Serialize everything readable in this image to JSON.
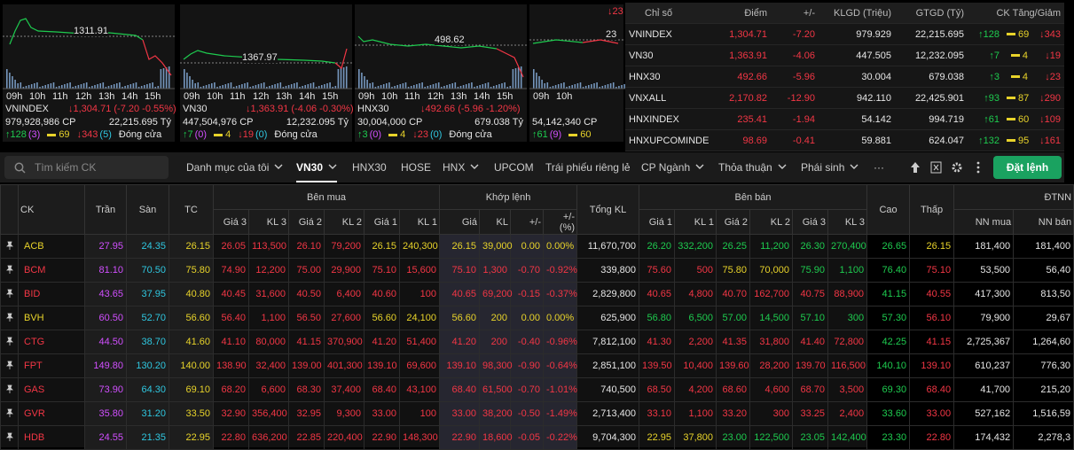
{
  "index_panels": [
    {
      "ref_label": "1311.91",
      "times": [
        "09h",
        "10h",
        "11h",
        "12h",
        "13h",
        "14h",
        "15h"
      ],
      "name": "VNINDEX",
      "change": "↓1,304.71 (-7.20 -0.55%)",
      "volume": "979,928,986 CP",
      "value": "22,215.695 Tỷ",
      "up": "↑128",
      "ceil": "(3)",
      "flat": "69",
      "down": "↓343",
      "floor": "(5)",
      "status": "Đóng cửa"
    },
    {
      "ref_label": "1367.97",
      "times": [
        "09h",
        "10h",
        "11h",
        "12h",
        "13h",
        "14h",
        "15h"
      ],
      "name": "VN30",
      "change": "↓1,363.91 (-4.06 -0.30%)",
      "volume": "447,504,976 CP",
      "value": "12,232.095 Tỷ",
      "up": "↑7",
      "ceil": "(0)",
      "flat": "4",
      "down": "↓19",
      "floor": "(0)",
      "status": "Đóng cửa"
    },
    {
      "ref_label": "498.62",
      "times": [
        "09h",
        "10h",
        "11h",
        "12h",
        "13h",
        "14h",
        "15h"
      ],
      "name": "HNX30",
      "change": "↓492.66 (-5.96 -1.20%)",
      "volume": "30,004,000 CP",
      "value": "679.038 Tỷ",
      "up": "↑3",
      "ceil": "(0)",
      "flat": "4",
      "down": "↓23",
      "floor": "(0)",
      "status": "Đóng cửa"
    },
    {
      "ref_label": "23",
      "times": [
        "09h",
        "10h"
      ],
      "change": "↓23",
      "volume": "54,142,340 CP",
      "up": "↑61",
      "ceil": "(9)",
      "flat": "60"
    }
  ],
  "index_table": {
    "headers": [
      "Chỉ số",
      "Điểm",
      "+/-",
      "KLGD (Triệu)",
      "GTGD (Tỷ)",
      "CK Tăng/Giảm"
    ],
    "rows": [
      [
        "VNINDEX",
        "1,304.71",
        "-7.20",
        "979.929",
        "22,215.695",
        "↑128",
        "69",
        "↓343"
      ],
      [
        "VN30",
        "1,363.91",
        "-4.06",
        "447.505",
        "12,232.095",
        "↑7",
        "4",
        "↓19"
      ],
      [
        "HNX30",
        "492.66",
        "-5.96",
        "30.004",
        "679.038",
        "↑3",
        "4",
        "↓23"
      ],
      [
        "VNXALL",
        "2,170.82",
        "-12.90",
        "942.110",
        "22,425.901",
        "↑93",
        "87",
        "↓290"
      ],
      [
        "HNXINDEX",
        "235.41",
        "-1.94",
        "54.142",
        "994.719",
        "↑61",
        "60",
        "↓109"
      ],
      [
        "HNXUPCOMINDE",
        "98.69",
        "-0.41",
        "59.881",
        "624.047",
        "↑132",
        "95",
        "↓161"
      ]
    ]
  },
  "toolbar": {
    "search_placeholder": "Tìm kiếm CK",
    "tabs": [
      "Danh mục của tôi",
      "VN30",
      "HNX30",
      "HOSE",
      "HNX",
      "UPCOM",
      "Trái phiếu riêng lẻ",
      "CP Ngành",
      "Thỏa thuận",
      "Phái sinh",
      "···"
    ],
    "order_button": "Đặt lệnh"
  },
  "price_board": {
    "group_headers": [
      "CK",
      "Trần",
      "Sàn",
      "TC",
      "Bên mua",
      "Khớp lệnh",
      "Tổng KL",
      "Bên bán",
      "Cao",
      "Thấp",
      "ĐTNN"
    ],
    "sub_headers": [
      "Giá 3",
      "KL 3",
      "Giá 2",
      "KL 2",
      "Giá 1",
      "KL 1",
      "Giá",
      "KL",
      "+/-",
      "+/- (%)",
      "Giá 1",
      "KL 1",
      "Giá 2",
      "KL 2",
      "Giá 3",
      "KL 3",
      "NN mua",
      "NN bán"
    ],
    "rows": [
      [
        "ACB",
        "27.95",
        "24.35",
        "26.15",
        "26.05",
        "113,500",
        "26.10",
        "79,200",
        "26.15",
        "240,300",
        "26.15",
        "39,000",
        "0.00",
        "0.00%",
        "11,670,700",
        "26.20",
        "332,200",
        "26.25",
        "11,200",
        "26.30",
        "270,400",
        "26.65",
        "26.15",
        "181,400",
        "181,400"
      ],
      [
        "BCM",
        "81.10",
        "70.50",
        "75.80",
        "74.90",
        "12,200",
        "75.00",
        "29,900",
        "75.10",
        "15,600",
        "75.10",
        "1,300",
        "-0.70",
        "-0.92%",
        "339,800",
        "75.60",
        "500",
        "75.80",
        "70,000",
        "75.90",
        "1,100",
        "76.40",
        "75.10",
        "53,500",
        "56,40"
      ],
      [
        "BID",
        "43.65",
        "37.95",
        "40.80",
        "40.45",
        "31,600",
        "40.50",
        "6,400",
        "40.60",
        "100",
        "40.65",
        "69,200",
        "-0.15",
        "-0.37%",
        "2,829,800",
        "40.65",
        "4,800",
        "40.70",
        "162,700",
        "40.75",
        "88,900",
        "41.15",
        "40.55",
        "417,300",
        "813,50"
      ],
      [
        "BVH",
        "60.50",
        "52.70",
        "56.60",
        "56.40",
        "1,100",
        "56.50",
        "27,600",
        "56.60",
        "24,100",
        "56.60",
        "200",
        "0.00",
        "0.00%",
        "625,900",
        "56.80",
        "6,500",
        "57.00",
        "14,500",
        "57.10",
        "300",
        "57.30",
        "56.10",
        "79,900",
        "29,67"
      ],
      [
        "CTG",
        "44.50",
        "38.70",
        "41.60",
        "41.10",
        "80,000",
        "41.15",
        "370,900",
        "41.20",
        "51,400",
        "41.20",
        "200",
        "-0.40",
        "-0.96%",
        "7,812,100",
        "41.30",
        "2,200",
        "41.35",
        "31,800",
        "41.40",
        "72,800",
        "42.25",
        "41.15",
        "2,725,367",
        "1,264,60"
      ],
      [
        "FPT",
        "149.80",
        "130.20",
        "140.00",
        "138.90",
        "32,400",
        "139.00",
        "401,300",
        "139.10",
        "69,600",
        "139.10",
        "98,300",
        "-0.90",
        "-0.64%",
        "2,851,100",
        "139.50",
        "10,400",
        "139.60",
        "28,200",
        "139.70",
        "116,500",
        "140.10",
        "139.10",
        "610,237",
        "776,30"
      ],
      [
        "GAS",
        "73.90",
        "64.30",
        "69.10",
        "68.20",
        "6,600",
        "68.30",
        "37,400",
        "68.40",
        "43,100",
        "68.40",
        "61,500",
        "-0.70",
        "-1.01%",
        "740,500",
        "68.50",
        "4,200",
        "68.60",
        "4,600",
        "68.70",
        "3,500",
        "69.30",
        "68.40",
        "41,700",
        "215,20"
      ],
      [
        "GVR",
        "35.80",
        "31.20",
        "33.50",
        "32.90",
        "356,400",
        "32.95",
        "9,300",
        "33.00",
        "100",
        "33.00",
        "38,200",
        "-0.50",
        "-1.49%",
        "2,713,400",
        "33.10",
        "1,100",
        "33.20",
        "300",
        "33.25",
        "2,400",
        "33.60",
        "33.00",
        "527,162",
        "1,516,59"
      ],
      [
        "HDB",
        "24.55",
        "21.35",
        "22.95",
        "22.80",
        "636,200",
        "22.85",
        "220,400",
        "22.90",
        "148,300",
        "22.90",
        "18,600",
        "-0.05",
        "-0.22%",
        "9,704,300",
        "22.95",
        "37,800",
        "23.00",
        "122,500",
        "23.05",
        "142,400",
        "23.30",
        "22.80",
        "174,432",
        "2,278,3"
      ]
    ]
  }
}
